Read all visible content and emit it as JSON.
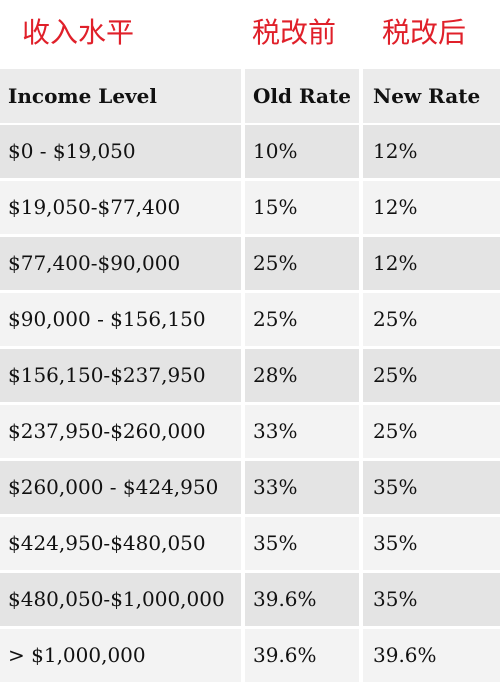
{
  "captions": {
    "income": "收入水平",
    "before": "税改前",
    "after": "税改后"
  },
  "table": {
    "headers": [
      "Income Level",
      "Old Rate",
      "New Rate"
    ],
    "rows": [
      [
        " $0 - $19,050",
        "10%",
        "12%"
      ],
      [
        "$19,050-$77,400",
        "15%",
        "12%"
      ],
      [
        "$77,400-$90,000",
        "25%",
        "12%"
      ],
      [
        "$90,000 - $156,150",
        "25%",
        "25%"
      ],
      [
        "$156,150-$237,950",
        "28%",
        "25%"
      ],
      [
        "$237,950-$260,000",
        "33%",
        "25%"
      ],
      [
        "$260,000 - $424,950",
        "33%",
        "35%"
      ],
      [
        "$424,950-$480,050",
        "35%",
        "35%"
      ],
      [
        "$480,050-$1,000,000",
        "39.6%",
        "35%"
      ],
      [
        "> $1,000,000",
        "39.6%",
        "39.6%"
      ]
    ]
  },
  "colors": {
    "caption": "#e0202a",
    "header_bg": "#ebebeb",
    "row_dark": "#e4e4e4",
    "row_light": "#f3f3f3"
  }
}
